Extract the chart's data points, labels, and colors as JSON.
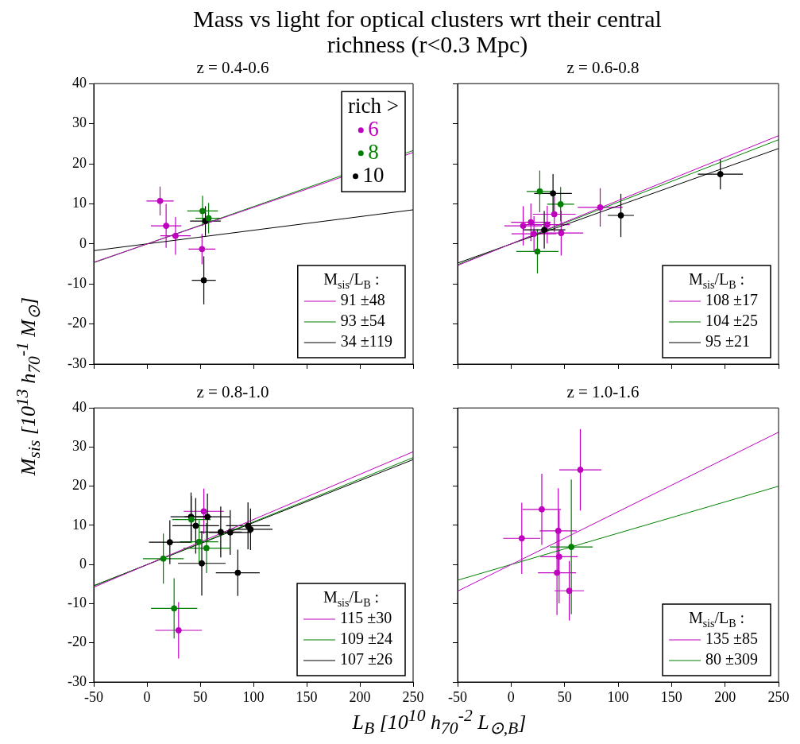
{
  "chart_data": [
    {
      "type": "scatter",
      "title": "Mass vs light for optical clusters wrt their central richness (r<0.3 Mpc)",
      "subtitle": "z = 0.4-0.6",
      "legend_title": "M$_{sis}$/L$_{B}$ :",
      "legend": "bottom right",
      "annotations": [
        "rich >"
      ],
      "marker": "circle",
      "tick_labels": "y",
      "xlim": [
        -50,
        250
      ],
      "xticks": [
        -50,
        0,
        50,
        100,
        150,
        200,
        250
      ],
      "ylim": [
        -30,
        40
      ],
      "yticks": [
        -30,
        -20,
        -10,
        0,
        10,
        20,
        30,
        40
      ],
      "series": [
        {
          "name": "6",
          "color": "#bf00bf",
          "x": [
            12.3,
            18.0,
            26.8,
            51.7
          ],
          "values": [
            10.7,
            4.5,
            2.0,
            -1.3
          ],
          "xerrors": [
            12.7,
            14.3,
            14.3,
            12.6
          ],
          "errors": [
            3.6,
            5.5,
            4.7,
            3.8
          ]
        },
        {
          "name": "8",
          "color": "#008000",
          "x": [
            52.2,
            57.9
          ],
          "values": [
            8.2,
            6.4
          ],
          "xerrors": [
            14.4,
            12.3
          ],
          "errors": [
            3.8,
            3.8
          ]
        },
        {
          "name": "10",
          "color": "#000000",
          "x": [
            54.9,
            53.4
          ],
          "values": [
            5.7,
            -9.1
          ],
          "xerrors": [
            14.4,
            11.3
          ],
          "errors": [
            3.7,
            6.0
          ]
        },
        {
          "type": "line",
          "marker": "none",
          "name": "91 ±48",
          "color": "#bf00bf",
          "x": [
            -50,
            250
          ],
          "values": [
            -4.6,
            22.8
          ]
        },
        {
          "type": "line",
          "marker": "none",
          "name": "93 ±54",
          "color": "#008000",
          "x": [
            -50,
            250
          ],
          "values": [
            -4.7,
            23.3
          ]
        },
        {
          "type": "line",
          "marker": "none",
          "name": "34 ±119",
          "color": "#000000",
          "x": [
            -50,
            250
          ],
          "values": [
            -1.7,
            8.5
          ]
        }
      ]
    },
    {
      "type": "scatter",
      "subtitle": "z = 0.6-0.8",
      "legend_title": "M$_{sis}$/L$_{B}$ :",
      "legend": "bottom right",
      "marker": "circle",
      "tick_labels": false,
      "xlim": [
        -50,
        250
      ],
      "xticks": [
        -50,
        0,
        50,
        100,
        150,
        200,
        250
      ],
      "ylim": [
        -30,
        40
      ],
      "yticks": [
        -30,
        -20,
        -10,
        0,
        10,
        20,
        30,
        40
      ],
      "series": [
        {
          "color": "#bf00bf",
          "x": [
            11.3,
            18.5,
            21.4,
            33.8,
            40.4,
            46.8,
            83.3
          ],
          "values": [
            4.5,
            5.4,
            2.5,
            4.8,
            7.4,
            2.7,
            9.1
          ],
          "xerrors": [
            17.6,
            18.5,
            21,
            21,
            20,
            20.6,
            21
          ],
          "errors": [
            4.9,
            4.7,
            4.4,
            4.7,
            4.4,
            5.6,
            4.8
          ]
        },
        {
          "color": "#008000",
          "x": [
            26.8,
            46.3,
            24.6
          ],
          "values": [
            13.1,
            9.9,
            -1.9
          ],
          "xerrors": [
            12.3,
            12.6,
            19.7
          ],
          "errors": [
            5.2,
            4.3,
            5.5
          ]
        },
        {
          "color": "#000000",
          "x": [
            39.2,
            31.0,
            102.6,
            195.6
          ],
          "values": [
            12.6,
            3.5,
            7.1,
            17.4
          ],
          "xerrors": [
            17.6,
            19.7,
            12.2,
            21
          ],
          "errors": [
            4.8,
            4.7,
            5.4,
            3.8
          ]
        },
        {
          "type": "line",
          "marker": "none",
          "name": "108 ±17",
          "color": "#bf00bf",
          "x": [
            -50,
            250
          ],
          "values": [
            -5.4,
            27.0
          ]
        },
        {
          "type": "line",
          "marker": "none",
          "name": "104 ±25",
          "color": "#008000",
          "x": [
            -50,
            250
          ],
          "values": [
            -5.2,
            26.0
          ]
        },
        {
          "type": "line",
          "marker": "none",
          "name": "95 ±21",
          "color": "#000000",
          "x": [
            -50,
            250
          ],
          "values": [
            -4.8,
            23.8
          ]
        }
      ]
    },
    {
      "type": "scatter",
      "subtitle": "z = 0.8-1.0",
      "xlabel": "L$_{B}$  [10$^{10}$ h$_{70}$$^{-2}$ L$_{⊙,B}$]",
      "ylabel": "M$_{sis}$ [10$^{13}$ h$_{70}$$^{-1}$ M$_{⊙}$]",
      "legend_title": "M$_{sis}$/L$_{B}$ :",
      "legend": "bottom right",
      "marker": "circle",
      "xlim": [
        -50,
        250
      ],
      "xticks": [
        -50,
        0,
        50,
        100,
        150,
        200,
        250
      ],
      "ylim": [
        -30,
        40
      ],
      "yticks": [
        -30,
        -20,
        -10,
        0,
        10,
        20,
        30,
        40
      ],
      "series": [
        {
          "color": "#bf00bf",
          "x": [
            53.4,
            29.7
          ],
          "values": [
            13.6,
            -16.8
          ],
          "xerrors": [
            18.9,
            21.9
          ],
          "errors": [
            5.8,
            7.2
          ]
        },
        {
          "color": "#008000",
          "x": [
            41.7,
            49.0,
            55.9,
            15.4,
            25.5
          ],
          "values": [
            11.5,
            5.8,
            4.2,
            1.5,
            -11.2
          ],
          "xerrors": [
            18,
            18,
            21.7,
            19.1,
            21.8
          ],
          "errors": [
            6,
            5.5,
            6.4,
            6.4,
            7.7
          ]
        },
        {
          "color": "#000000",
          "x": [
            21.5,
            41.4,
            45.8,
            56.8,
            51.5,
            69.3,
            78.2,
            94.9,
            97.3,
            85.3
          ],
          "values": [
            5.7,
            12.2,
            9.9,
            12.2,
            0.3,
            8.3,
            8.2,
            9.9,
            9.0,
            -2.1
          ],
          "xerrors": [
            19.6,
            19.2,
            21.9,
            21.4,
            22.3,
            19.8,
            20,
            20.6,
            20.6,
            20.6
          ],
          "errors": [
            5.6,
            6.2,
            7.1,
            5.9,
            8.2,
            6.5,
            5.7,
            6,
            5.3,
            5.9
          ]
        },
        {
          "type": "line",
          "marker": "none",
          "name": "115 ±30",
          "color": "#bf00bf",
          "x": [
            -50,
            250
          ],
          "values": [
            -5.8,
            28.8
          ]
        },
        {
          "type": "line",
          "marker": "none",
          "name": "109 ±24",
          "color": "#008000",
          "x": [
            -50,
            250
          ],
          "values": [
            -5.5,
            27.3
          ]
        },
        {
          "type": "line",
          "marker": "none",
          "name": "107 ±26",
          "color": "#000000",
          "x": [
            -50,
            250
          ],
          "values": [
            -5.4,
            26.8
          ]
        }
      ]
    },
    {
      "type": "scatter",
      "subtitle": "z = 1.0-1.6",
      "legend_title": "M$_{sis}$/L$_{B}$ :",
      "legend": "bottom right",
      "marker": "circle",
      "tick_labels": "x",
      "xlim": [
        -50,
        250
      ],
      "xticks": [
        -50,
        0,
        50,
        100,
        150,
        200,
        250
      ],
      "ylim": [
        -30,
        40
      ],
      "yticks": [
        -30,
        -20,
        -10,
        0,
        10,
        20,
        30,
        40
      ],
      "series": [
        {
          "color": "#bf00bf",
          "x": [
            10.0,
            28.7,
            44.1,
            44.9,
            42.9,
            54.4,
            64.7
          ],
          "values": [
            6.7,
            14.1,
            8.6,
            2.0,
            -2.1,
            -6.7,
            24.2
          ],
          "xerrors": [
            17.4,
            18,
            17.4,
            17.4,
            17.8,
            13.7,
            19.7
          ],
          "errors": [
            9.1,
            9.1,
            10.9,
            11.9,
            10.8,
            7.6,
            10.4
          ]
        },
        {
          "color": "#008000",
          "x": [
            56.3
          ],
          "values": [
            4.5
          ],
          "xerrors": [
            20
          ],
          "errors": [
            17.2
          ]
        },
        {
          "type": "line",
          "marker": "none",
          "name": "135 ±85",
          "color": "#bf00bf",
          "x": [
            -50,
            250
          ],
          "values": [
            -6.8,
            33.8
          ]
        },
        {
          "type": "line",
          "marker": "none",
          "name": "80 ±309",
          "color": "#008000",
          "x": [
            -50,
            250
          ],
          "values": [
            -4.0,
            20.0
          ]
        }
      ]
    }
  ]
}
